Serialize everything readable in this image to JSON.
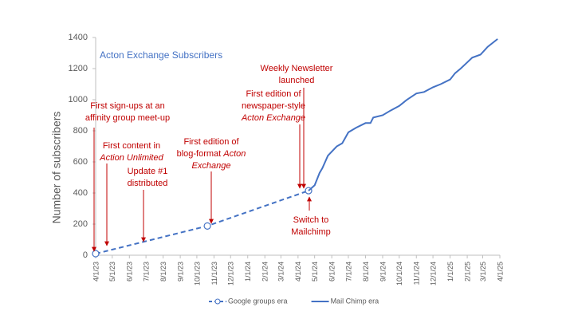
{
  "chart_data": {
    "type": "line",
    "title": "Acton Exchange Subscribers",
    "y_label": "Number of subscribers",
    "xlim": [
      "4/1/23",
      "4/1/25"
    ],
    "xticks": [
      "4/1/23",
      "5/1/23",
      "6/1/23",
      "7/1/23",
      "8/1/23",
      "9/1/23",
      "10/1/23",
      "11/1/23",
      "12/1/23",
      "1/1/24",
      "2/1/24",
      "3/1/24",
      "4/1/24",
      "5/1/24",
      "6/1/24",
      "7/1/24",
      "8/1/24",
      "9/1/24",
      "10/1/24",
      "11/1/24",
      "12/1/24",
      "1/1/25",
      "2/1/25",
      "3/1/25",
      "4/1/25"
    ],
    "ylim": [
      0,
      1400
    ],
    "yticks": [
      0,
      200,
      400,
      600,
      800,
      1000,
      1200,
      1400
    ],
    "series": [
      {
        "name": "Google groups era",
        "color": "#4472c4",
        "dashed": true,
        "marker": "circle",
        "x": [
          "4/1/23",
          "10/20/23",
          "4/20/24"
        ],
        "values": [
          10,
          188,
          415
        ]
      },
      {
        "name": "Mail Chimp era",
        "color": "#4472c4",
        "dashed": false,
        "marker": "none",
        "x": [
          "4/20/24",
          "5/1/24",
          "5/10/24",
          "5/15/24",
          "5/25/24",
          "6/10/24",
          "6/20/24",
          "7/1/24",
          "7/15/24",
          "8/1/24",
          "8/10/24",
          "8/15/24",
          "9/1/24",
          "9/15/24",
          "10/1/24",
          "10/15/24",
          "11/1/24",
          "11/15/24",
          "12/1/24",
          "12/15/24",
          "1/1/25",
          "1/10/25",
          "1/20/25",
          "2/1/25",
          "2/10/25",
          "2/25/25",
          "3/10/25",
          "3/28/25"
        ],
        "values": [
          415,
          450,
          530,
          560,
          640,
          700,
          720,
          790,
          820,
          850,
          850,
          885,
          900,
          930,
          960,
          1000,
          1040,
          1050,
          1080,
          1100,
          1130,
          1170,
          1200,
          1240,
          1270,
          1290,
          1340,
          1390
        ]
      }
    ],
    "annotation_color": "#c00000",
    "annotations": [
      {
        "lines": [
          [
            {
              "text": "First sign-ups at an",
              "italic": false
            }
          ],
          [
            {
              "text": "affinity group meet-up",
              "italic": false
            }
          ]
        ]
      },
      {
        "lines": [
          [
            {
              "text": "First content in",
              "italic": false
            }
          ],
          [
            {
              "text": "Action Unlimited",
              "italic": true
            }
          ]
        ]
      },
      {
        "lines": [
          [
            {
              "text": "Update #1",
              "italic": false
            }
          ],
          [
            {
              "text": "distributed",
              "italic": false
            }
          ]
        ]
      },
      {
        "lines": [
          [
            {
              "text": "First edition of",
              "italic": false
            }
          ],
          [
            {
              "text": "blog-format ",
              "italic": false
            },
            {
              "text": "Acton",
              "italic": true
            }
          ],
          [
            {
              "text": "Exchange",
              "italic": true
            }
          ]
        ]
      },
      {
        "lines": [
          [
            {
              "text": "Weekly Newsletter",
              "italic": false
            }
          ],
          [
            {
              "text": "launched",
              "italic": false
            }
          ]
        ]
      },
      {
        "lines": [
          [
            {
              "text": "First edition of",
              "italic": false
            }
          ],
          [
            {
              "text": "newspaper-style",
              "italic": false
            }
          ],
          [
            {
              "text": "Acton Exchange",
              "italic": true
            }
          ]
        ]
      },
      {
        "lines": [
          [
            {
              "text": "Switch to",
              "italic": false
            }
          ],
          [
            {
              "text": "Mailchimp",
              "italic": false
            }
          ]
        ]
      }
    ]
  }
}
